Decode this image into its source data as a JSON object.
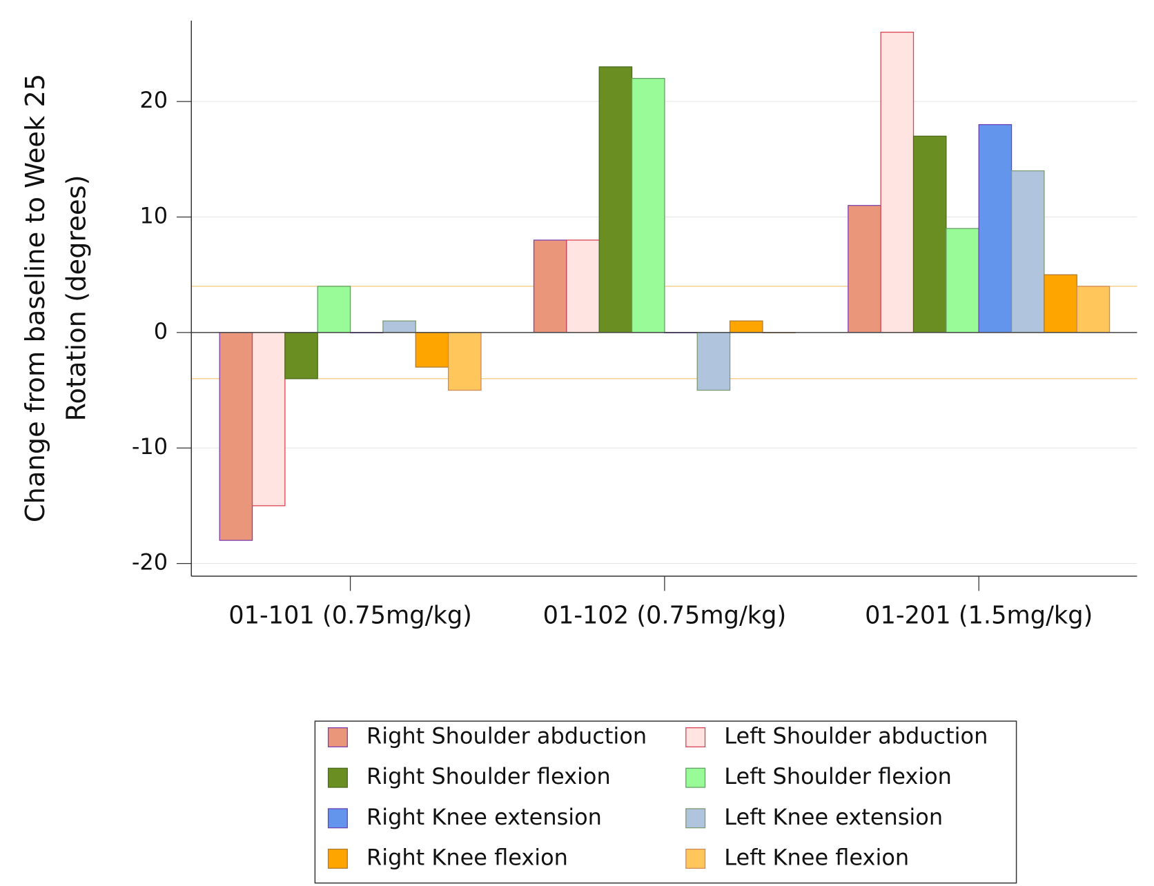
{
  "chart_data": {
    "type": "bar",
    "ylabel": [
      "Change from baseline to Week 25",
      "Rotation (degrees)"
    ],
    "categories": [
      "01-101 (0.75mg/kg)",
      "01-102 (0.75mg/kg)",
      "01-201 (1.5mg/kg)"
    ],
    "series": [
      {
        "name": "Right Shoulder abduction",
        "color": "#e9967a",
        "edgecolor": "#7b3fb0",
        "values": [
          -18,
          8,
          11
        ]
      },
      {
        "name": "Left Shoulder abduction",
        "color": "#ffe4e1",
        "edgecolor": "#d9404f",
        "values": [
          -15,
          8,
          26
        ]
      },
      {
        "name": "Right Shoulder flexion",
        "color": "#6b8e23",
        "edgecolor": "#4a6a1a",
        "values": [
          -4,
          23,
          17
        ]
      },
      {
        "name": "Left Shoulder flexion",
        "color": "#98fb98",
        "edgecolor": "#5fa05f",
        "values": [
          4,
          22,
          9
        ]
      },
      {
        "name": "Right Knee extension",
        "color": "#6495ed",
        "edgecolor": "#6a3fb8",
        "values": [
          0,
          0,
          18
        ]
      },
      {
        "name": "Left Knee extension",
        "color": "#b0c4de",
        "edgecolor": "#7a9a70",
        "values": [
          1,
          -5,
          14
        ]
      },
      {
        "name": "Right Knee flexion",
        "color": "#ffa500",
        "edgecolor": "#b07a30",
        "values": [
          -3,
          1,
          5
        ]
      },
      {
        "name": "Left Knee flexion",
        "color": "#ffc65c",
        "edgecolor": "#d08a5a",
        "values": [
          -5,
          0,
          4
        ]
      }
    ],
    "ylim": [
      -21.1,
      27
    ],
    "yticks": [
      -20,
      -10,
      0,
      10,
      20
    ],
    "grid": true,
    "reference_lines": [
      4,
      -4
    ],
    "reference_color": "#f5c97a",
    "legend": "bottom"
  }
}
